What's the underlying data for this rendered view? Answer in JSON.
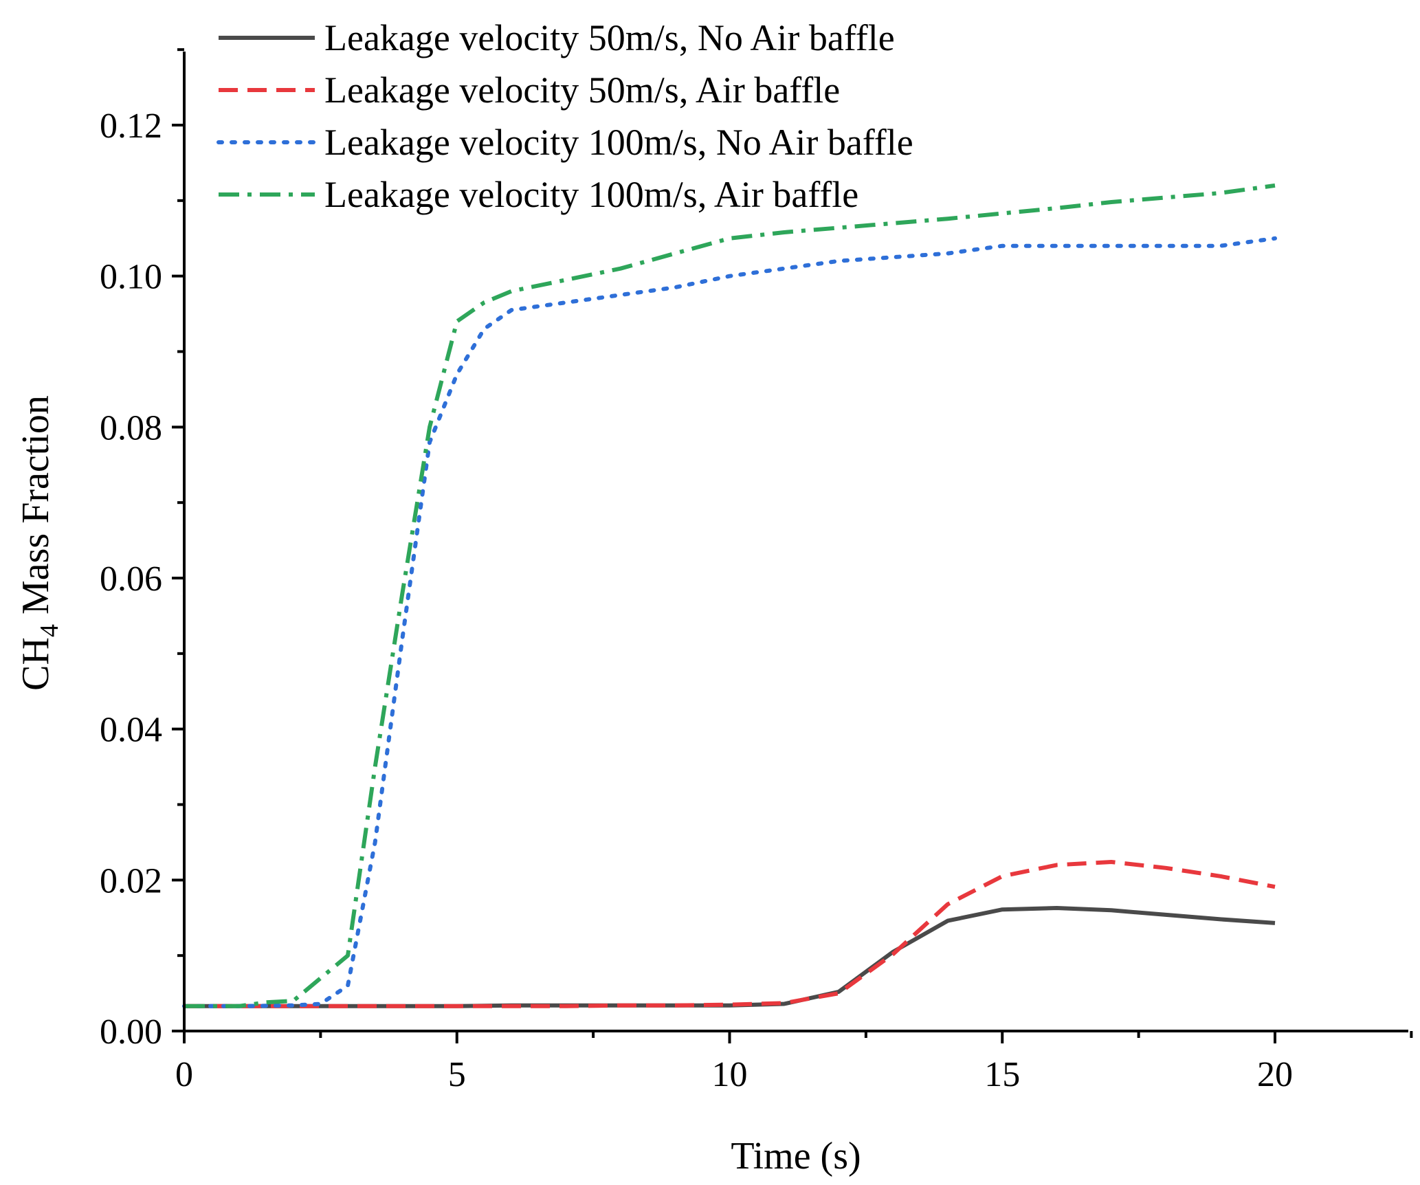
{
  "chart_data": {
    "type": "line",
    "title": "",
    "xlabel": "Time (s)",
    "ylabel_main": "CH",
    "ylabel_sub": "4",
    "ylabel_rest": " Mass Fraction",
    "xlim": [
      0,
      22.5
    ],
    "ylim": [
      0,
      0.13
    ],
    "x_ticks": [
      0,
      5,
      10,
      15,
      20
    ],
    "x_tick_labels": [
      "0",
      "5",
      "10",
      "15",
      "20"
    ],
    "y_ticks": [
      0,
      0.02,
      0.04,
      0.06,
      0.08,
      0.1,
      0.12
    ],
    "y_tick_labels": [
      "0.00",
      "0.02",
      "0.04",
      "0.06",
      "0.08",
      "0.10",
      "0.12"
    ],
    "legend_position": "top-left",
    "series": [
      {
        "name": "Leakage velocity 50m/s, No Air baffle",
        "color": "#4a4a4a",
        "style": "solid",
        "x": [
          0,
          1,
          2,
          3,
          4,
          5,
          6,
          7,
          8,
          9,
          10,
          11,
          12,
          13,
          14,
          15,
          16,
          17,
          18,
          19,
          20
        ],
        "y": [
          0.0033,
          0.0033,
          0.0033,
          0.0033,
          0.0033,
          0.0033,
          0.0034,
          0.0034,
          0.0034,
          0.0034,
          0.0034,
          0.0036,
          0.0052,
          0.0105,
          0.0146,
          0.0161,
          0.0163,
          0.016,
          0.0154,
          0.0148,
          0.0143
        ]
      },
      {
        "name": "Leakage velocity 50m/s, Air baffle",
        "color": "#e8383d",
        "style": "dashed",
        "x": [
          0,
          1,
          2,
          3,
          4,
          5,
          6,
          7,
          8,
          9,
          10,
          11,
          12,
          13,
          14,
          15,
          16,
          17,
          18,
          19,
          20
        ],
        "y": [
          0.0033,
          0.0033,
          0.0033,
          0.0033,
          0.0033,
          0.0033,
          0.0033,
          0.0033,
          0.0034,
          0.0034,
          0.0035,
          0.0037,
          0.005,
          0.0102,
          0.0168,
          0.0205,
          0.022,
          0.0224,
          0.0216,
          0.0205,
          0.0191
        ]
      },
      {
        "name": "Leakage velocity 100m/s, No Air baffle",
        "color": "#2e6fd8",
        "style": "dotted",
        "x": [
          0,
          1,
          2,
          2.5,
          3,
          3.5,
          4,
          4.5,
          5,
          5.5,
          6,
          7,
          8,
          9,
          10,
          11,
          12,
          13,
          14,
          15,
          16,
          17,
          18,
          19,
          20
        ],
        "y": [
          0.0033,
          0.0033,
          0.0034,
          0.0036,
          0.006,
          0.025,
          0.052,
          0.078,
          0.087,
          0.093,
          0.0955,
          0.0965,
          0.0975,
          0.0985,
          0.1,
          0.101,
          0.102,
          0.1025,
          0.103,
          0.104,
          0.104,
          0.104,
          0.104,
          0.104,
          0.105
        ]
      },
      {
        "name": "Leakage velocity 100m/s, Air baffle",
        "color": "#2ea65a",
        "style": "dashdot",
        "x": [
          0,
          1,
          1.5,
          2,
          2.5,
          3,
          3.5,
          4,
          4.5,
          5,
          5.5,
          6,
          7,
          8,
          9,
          10,
          11,
          12,
          13,
          14,
          15,
          16,
          17,
          18,
          19,
          20
        ],
        "y": [
          0.0033,
          0.0033,
          0.0038,
          0.004,
          0.007,
          0.01,
          0.035,
          0.058,
          0.08,
          0.094,
          0.0965,
          0.098,
          0.0995,
          0.101,
          0.103,
          0.105,
          0.1058,
          0.1064,
          0.107,
          0.1076,
          0.1083,
          0.109,
          0.1098,
          0.1104,
          0.111,
          0.112
        ]
      }
    ]
  }
}
